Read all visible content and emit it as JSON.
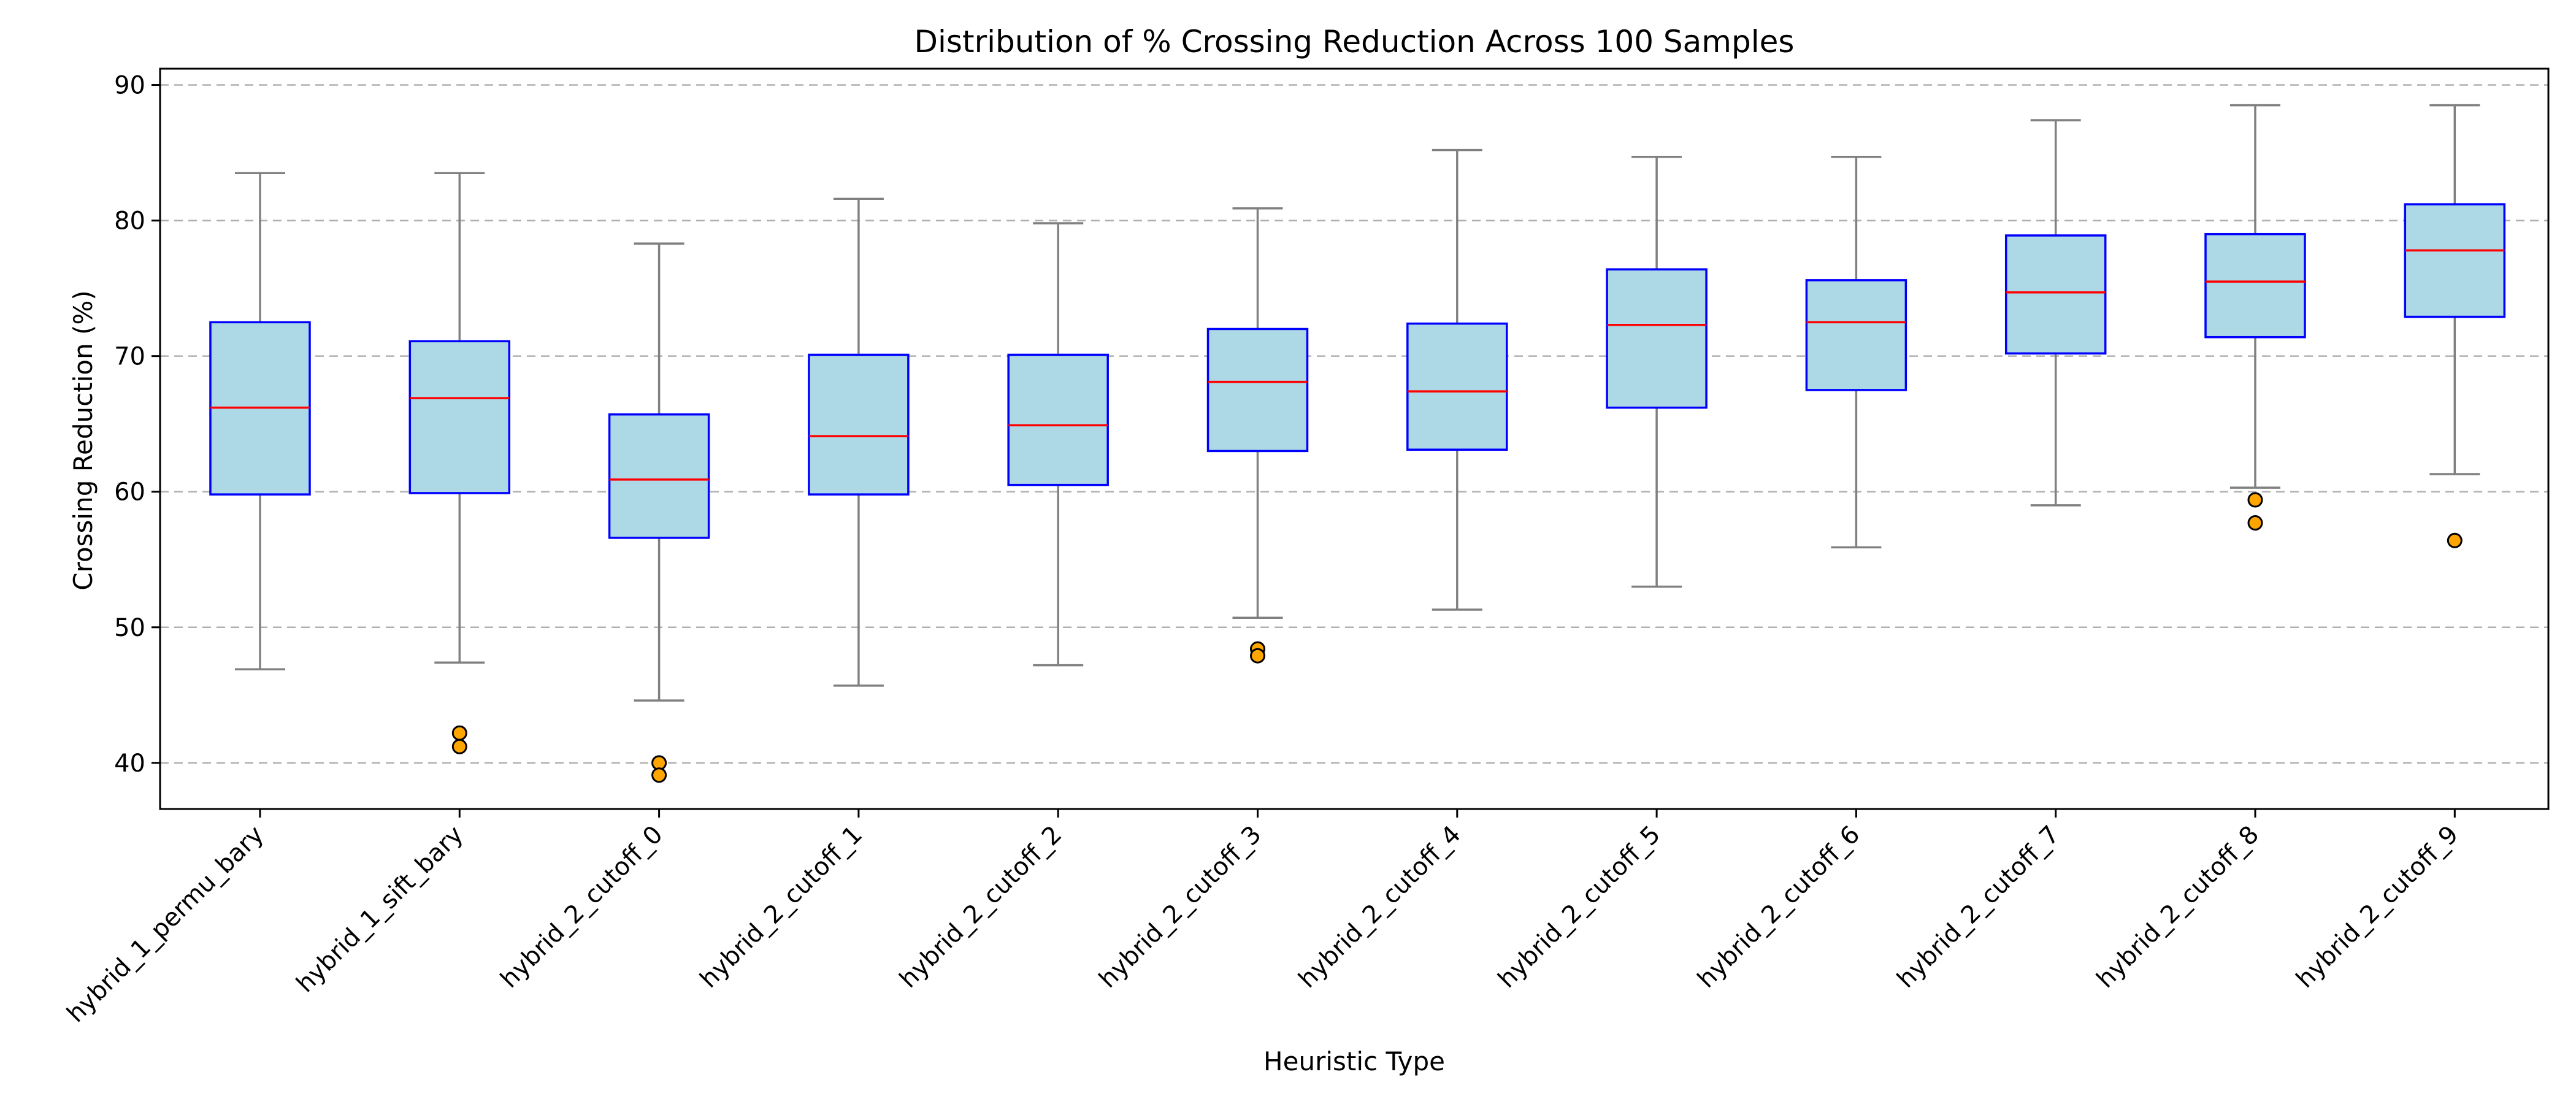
{
  "chart_data": {
    "type": "box",
    "title": "Distribution of % Crossing Reduction Across 100 Samples",
    "xlabel": "Heuristic Type",
    "ylabel": "Crossing Reduction (%)",
    "ylim": [
      36.6,
      91.2
    ],
    "yticks": [
      40,
      50,
      60,
      70,
      80,
      90
    ],
    "grid": "y-dashed",
    "colors": {
      "box_fill": "#add8e6",
      "box_edge": "#0000ff",
      "median": "#ff0000",
      "whisker": "#808080",
      "flier_fill": "#ffa500",
      "flier_edge": "#000000",
      "grid": "#b0b0b0"
    },
    "categories": [
      "hybrid_1_permu_bary",
      "hybrid_1_sift_bary",
      "hybrid_2_cutoff_0",
      "hybrid_2_cutoff_1",
      "hybrid_2_cutoff_2",
      "hybrid_2_cutoff_3",
      "hybrid_2_cutoff_4",
      "hybrid_2_cutoff_5",
      "hybrid_2_cutoff_6",
      "hybrid_2_cutoff_7",
      "hybrid_2_cutoff_8",
      "hybrid_2_cutoff_9"
    ],
    "boxes": [
      {
        "whislo": 46.9,
        "q1": 59.8,
        "med": 66.2,
        "q3": 72.5,
        "whishi": 83.5,
        "fliers": []
      },
      {
        "whislo": 47.4,
        "q1": 59.9,
        "med": 66.9,
        "q3": 71.1,
        "whishi": 83.5,
        "fliers": [
          42.2,
          41.2
        ]
      },
      {
        "whislo": 44.6,
        "q1": 56.6,
        "med": 60.9,
        "q3": 65.7,
        "whishi": 78.3,
        "fliers": [
          40.0,
          39.1
        ]
      },
      {
        "whislo": 45.7,
        "q1": 59.8,
        "med": 64.1,
        "q3": 70.1,
        "whishi": 81.6,
        "fliers": []
      },
      {
        "whislo": 47.2,
        "q1": 60.5,
        "med": 64.9,
        "q3": 70.1,
        "whishi": 79.8,
        "fliers": []
      },
      {
        "whislo": 50.7,
        "q1": 63.0,
        "med": 68.1,
        "q3": 72.0,
        "whishi": 80.9,
        "fliers": [
          48.4,
          47.9
        ]
      },
      {
        "whislo": 51.3,
        "q1": 63.1,
        "med": 67.4,
        "q3": 72.4,
        "whishi": 85.2,
        "fliers": []
      },
      {
        "whislo": 53.0,
        "q1": 66.2,
        "med": 72.3,
        "q3": 76.4,
        "whishi": 84.7,
        "fliers": []
      },
      {
        "whislo": 55.9,
        "q1": 67.5,
        "med": 72.5,
        "q3": 75.6,
        "whishi": 84.7,
        "fliers": []
      },
      {
        "whislo": 59.0,
        "q1": 70.2,
        "med": 74.7,
        "q3": 78.9,
        "whishi": 87.4,
        "fliers": []
      },
      {
        "whislo": 60.3,
        "q1": 71.4,
        "med": 75.5,
        "q3": 79.0,
        "whishi": 88.5,
        "fliers": [
          59.4,
          57.7
        ]
      },
      {
        "whislo": 61.3,
        "q1": 72.9,
        "med": 77.8,
        "q3": 81.2,
        "whishi": 88.5,
        "fliers": [
          56.4
        ]
      }
    ]
  }
}
